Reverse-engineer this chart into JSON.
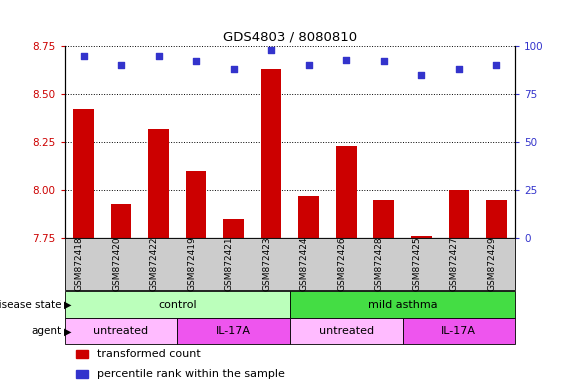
{
  "title": "GDS4803 / 8080810",
  "samples": [
    "GSM872418",
    "GSM872420",
    "GSM872422",
    "GSM872419",
    "GSM872421",
    "GSM872423",
    "GSM872424",
    "GSM872426",
    "GSM872428",
    "GSM872425",
    "GSM872427",
    "GSM872429"
  ],
  "bar_values": [
    8.42,
    7.93,
    8.32,
    8.1,
    7.85,
    8.63,
    7.97,
    8.23,
    7.95,
    7.76,
    8.0,
    7.95
  ],
  "dot_values": [
    95,
    90,
    95,
    92,
    88,
    98,
    90,
    93,
    92,
    85,
    88,
    90
  ],
  "bar_color": "#cc0000",
  "dot_color": "#3333cc",
  "ylim_left": [
    7.75,
    8.75
  ],
  "ylim_right": [
    0,
    100
  ],
  "yticks_left": [
    7.75,
    8.0,
    8.25,
    8.5,
    8.75
  ],
  "yticks_right": [
    0,
    25,
    50,
    75,
    100
  ],
  "disease_state_groups": [
    {
      "label": "control",
      "start": 0,
      "end": 6,
      "color": "#bbffbb"
    },
    {
      "label": "mild asthma",
      "start": 6,
      "end": 12,
      "color": "#44dd44"
    }
  ],
  "agent_groups": [
    {
      "label": "untreated",
      "start": 0,
      "end": 3,
      "color": "#ffbbff"
    },
    {
      "label": "IL-17A",
      "start": 3,
      "end": 6,
      "color": "#ee55ee"
    },
    {
      "label": "untreated",
      "start": 6,
      "end": 9,
      "color": "#ffbbff"
    },
    {
      "label": "IL-17A",
      "start": 9,
      "end": 12,
      "color": "#ee55ee"
    }
  ],
  "legend_items": [
    {
      "label": "transformed count",
      "color": "#cc0000"
    },
    {
      "label": "percentile rank within the sample",
      "color": "#3333cc"
    }
  ],
  "tick_label_color_left": "#cc0000",
  "tick_label_color_right": "#3333cc",
  "background_color": "#ffffff",
  "xlabel_area_color": "#cccccc"
}
